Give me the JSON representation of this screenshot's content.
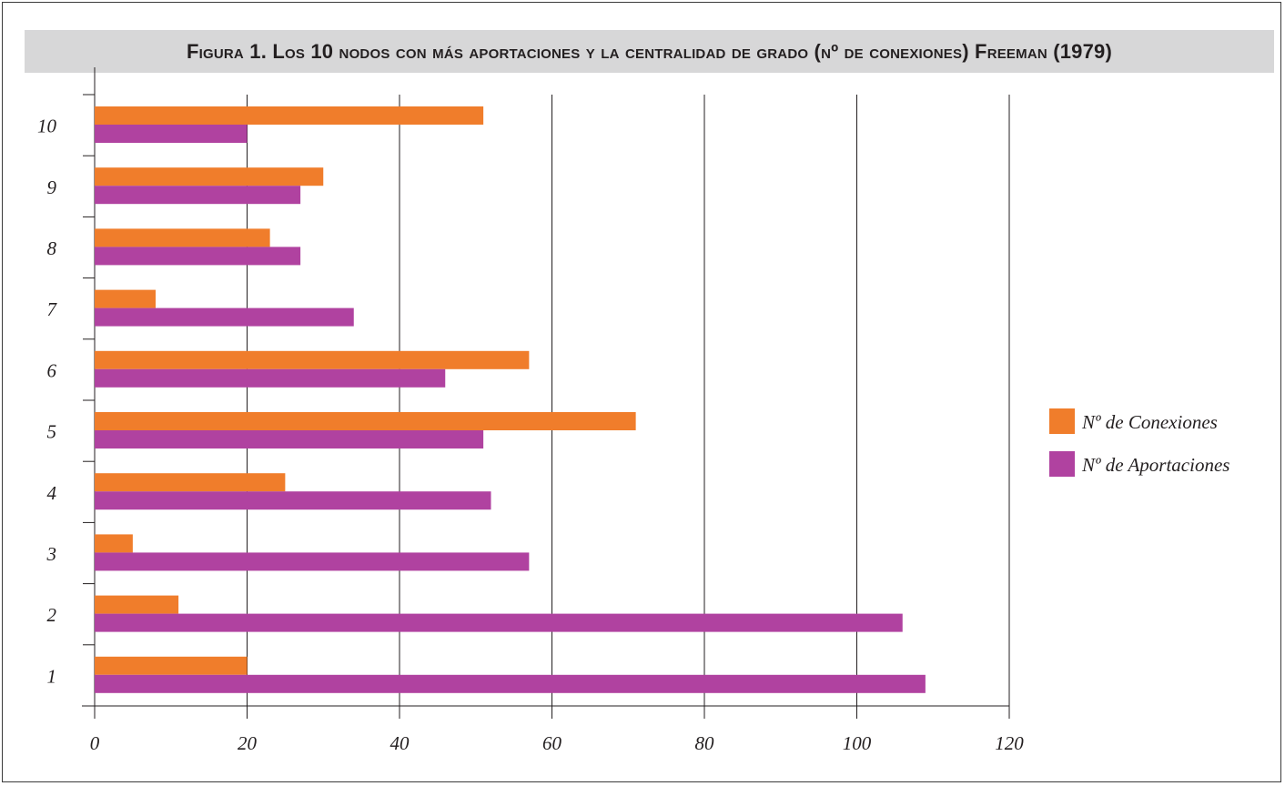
{
  "chart_data": {
    "type": "bar",
    "orientation": "horizontal",
    "title": "Figura 1. Los 10 nodos con más aportaciones y la centralidad de grado (nº de conexiones) Freeman (1979)",
    "categories": [
      "1",
      "2",
      "3",
      "4",
      "5",
      "6",
      "7",
      "8",
      "9",
      "10"
    ],
    "series": [
      {
        "name": "Nº de Conexiones",
        "color": "#f07d2b",
        "values": [
          20,
          11,
          5,
          25,
          71,
          57,
          8,
          23,
          30,
          51
        ]
      },
      {
        "name": "Nº de Aportaciones",
        "color": "#b042a0",
        "values": [
          109,
          106,
          57,
          52,
          51,
          46,
          34,
          27,
          27,
          20
        ]
      }
    ],
    "xticks": [
      0,
      20,
      40,
      60,
      80,
      100,
      120
    ],
    "xlim": [
      0,
      120
    ],
    "grid": "vertical",
    "legend": "right",
    "xlabel": "",
    "ylabel": ""
  }
}
